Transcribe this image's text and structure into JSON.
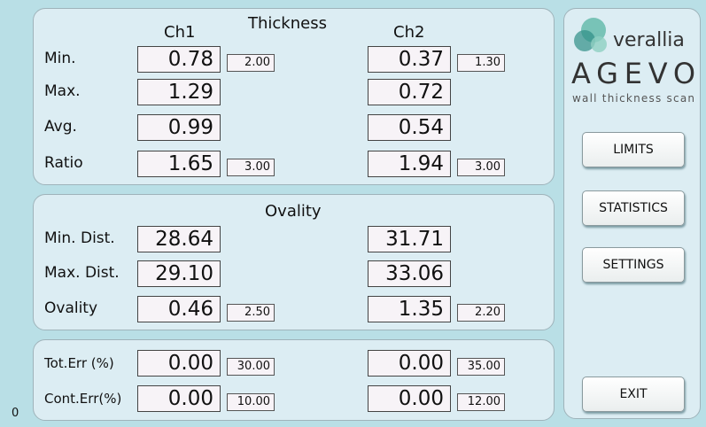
{
  "thickness": {
    "title": "Thickness",
    "channels": [
      "Ch1",
      "Ch2"
    ],
    "rows": [
      {
        "label": "Min.",
        "ch1": "0.78",
        "ch1_limit": "2.00",
        "ch2": "0.37",
        "ch2_limit": "1.30"
      },
      {
        "label": "Max.",
        "ch1": "1.29",
        "ch2": "0.72"
      },
      {
        "label": "Avg.",
        "ch1": "0.99",
        "ch2": "0.54"
      },
      {
        "label": "Ratio",
        "ch1": "1.65",
        "ch1_limit": "3.00",
        "ch2": "1.94",
        "ch2_limit": "3.00"
      }
    ]
  },
  "ovality": {
    "title": "Ovality",
    "rows": [
      {
        "label": "Min. Dist.",
        "ch1": "28.64",
        "ch2": "31.71"
      },
      {
        "label": "Max. Dist.",
        "ch1": "29.10",
        "ch2": "33.06"
      },
      {
        "label": "Ovality",
        "ch1": "0.46",
        "ch1_limit": "2.50",
        "ch2": "1.35",
        "ch2_limit": "2.20"
      }
    ]
  },
  "errors": {
    "rows": [
      {
        "label": "Tot.Err (%)",
        "ch1": "0.00",
        "ch1_limit": "30.00",
        "ch2": "0.00",
        "ch2_limit": "35.00"
      },
      {
        "label": "Cont.Err(%)",
        "ch1": "0.00",
        "ch1_limit": "10.00",
        "ch2": "0.00",
        "ch2_limit": "12.00"
      }
    ]
  },
  "logo": {
    "brand": "verallia",
    "product": "AGEVO",
    "tagline": "wall thickness scan"
  },
  "buttons": [
    "LIMITS",
    "STATISTICS",
    "SETTINGS",
    "EXIT"
  ],
  "status": "0"
}
